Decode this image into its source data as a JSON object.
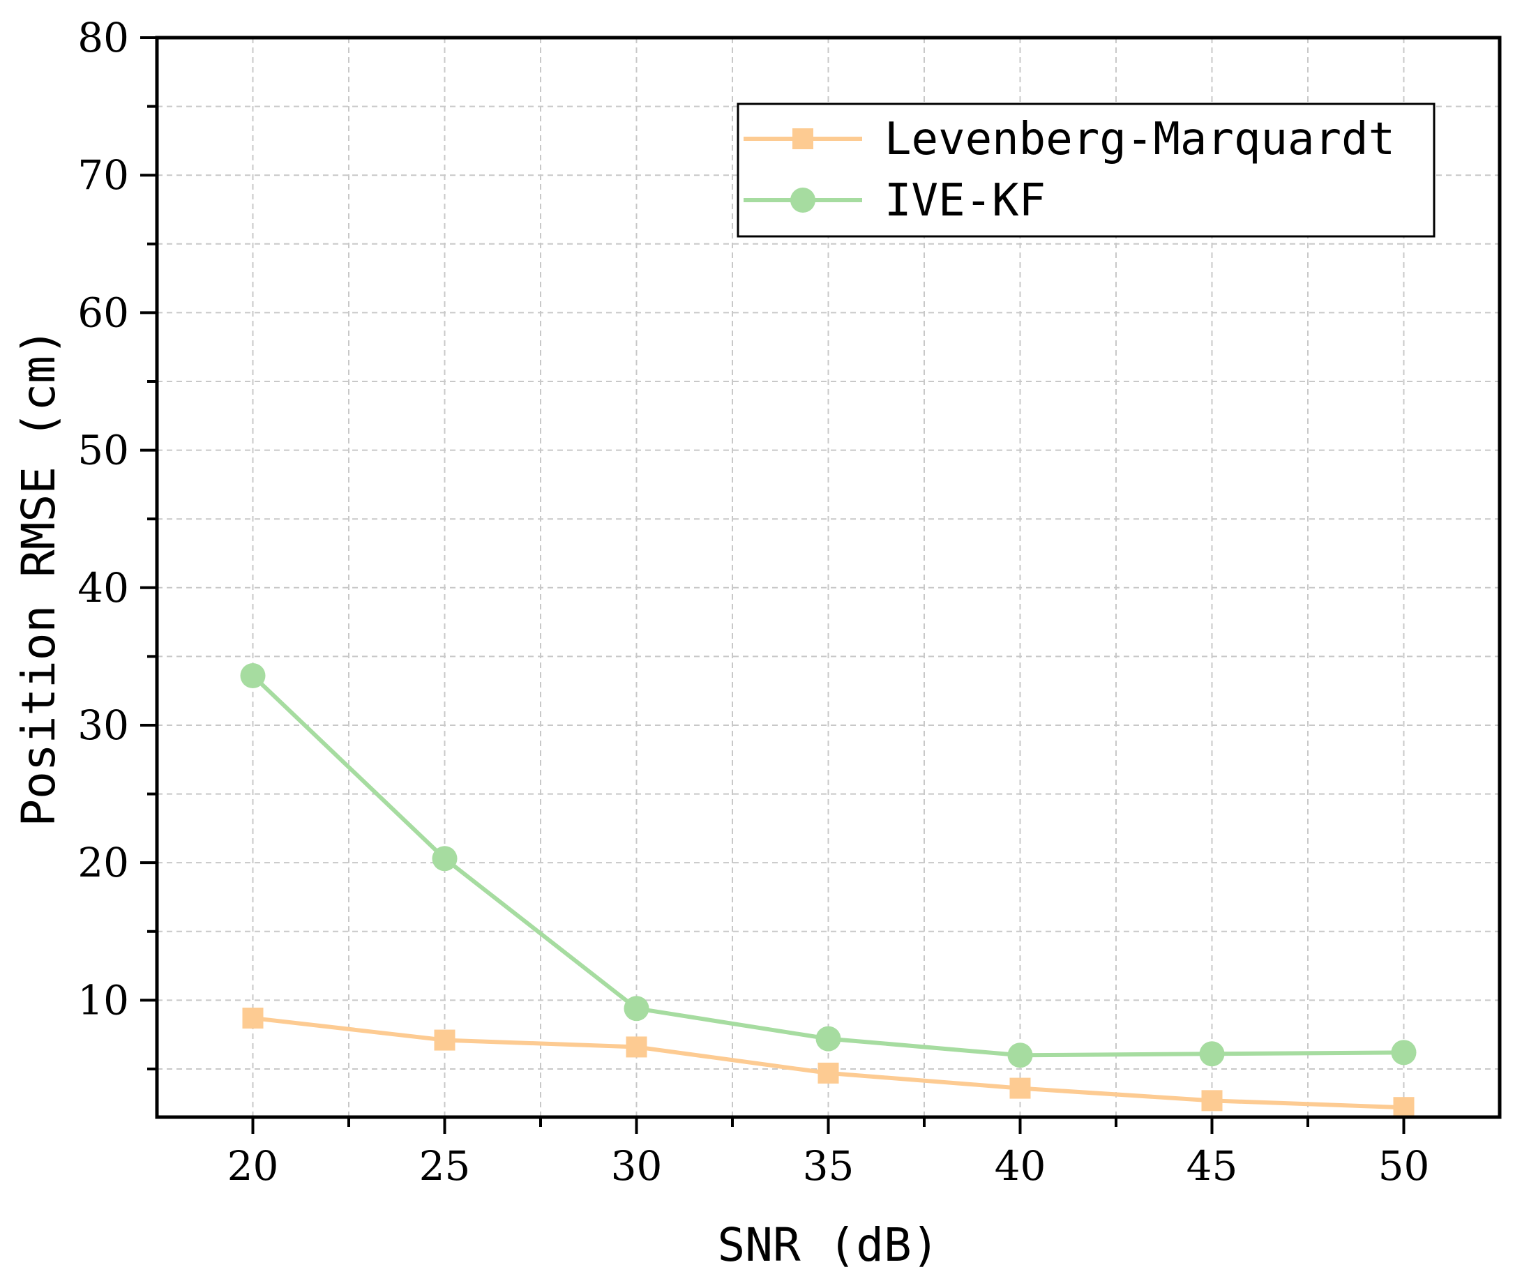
{
  "chart_data": {
    "type": "line",
    "title": "",
    "xlabel": "SNR (dB)",
    "ylabel": "Position RMSE (cm)",
    "x": [
      20,
      25,
      30,
      35,
      40,
      45,
      50
    ],
    "xlim": [
      17.5,
      52.5
    ],
    "ylim": [
      1.5,
      80
    ],
    "xticks": [
      "20",
      "25",
      "30",
      "35",
      "40",
      "45",
      "50"
    ],
    "yticks": [
      "10",
      "20",
      "30",
      "40",
      "50",
      "60",
      "70",
      "80"
    ],
    "grid": true,
    "legend_position": "top-right",
    "series": [
      {
        "name": "Levenberg-Marquardt",
        "marker": "square",
        "color": "#FDCB92",
        "values": [
          8.7,
          7.1,
          6.6,
          4.7,
          3.6,
          2.7,
          2.2
        ]
      },
      {
        "name": "IVE-KF",
        "marker": "circle",
        "color": "#A6DCA0",
        "values": [
          33.6,
          20.3,
          9.4,
          7.2,
          6.0,
          6.1,
          6.2
        ]
      }
    ]
  }
}
